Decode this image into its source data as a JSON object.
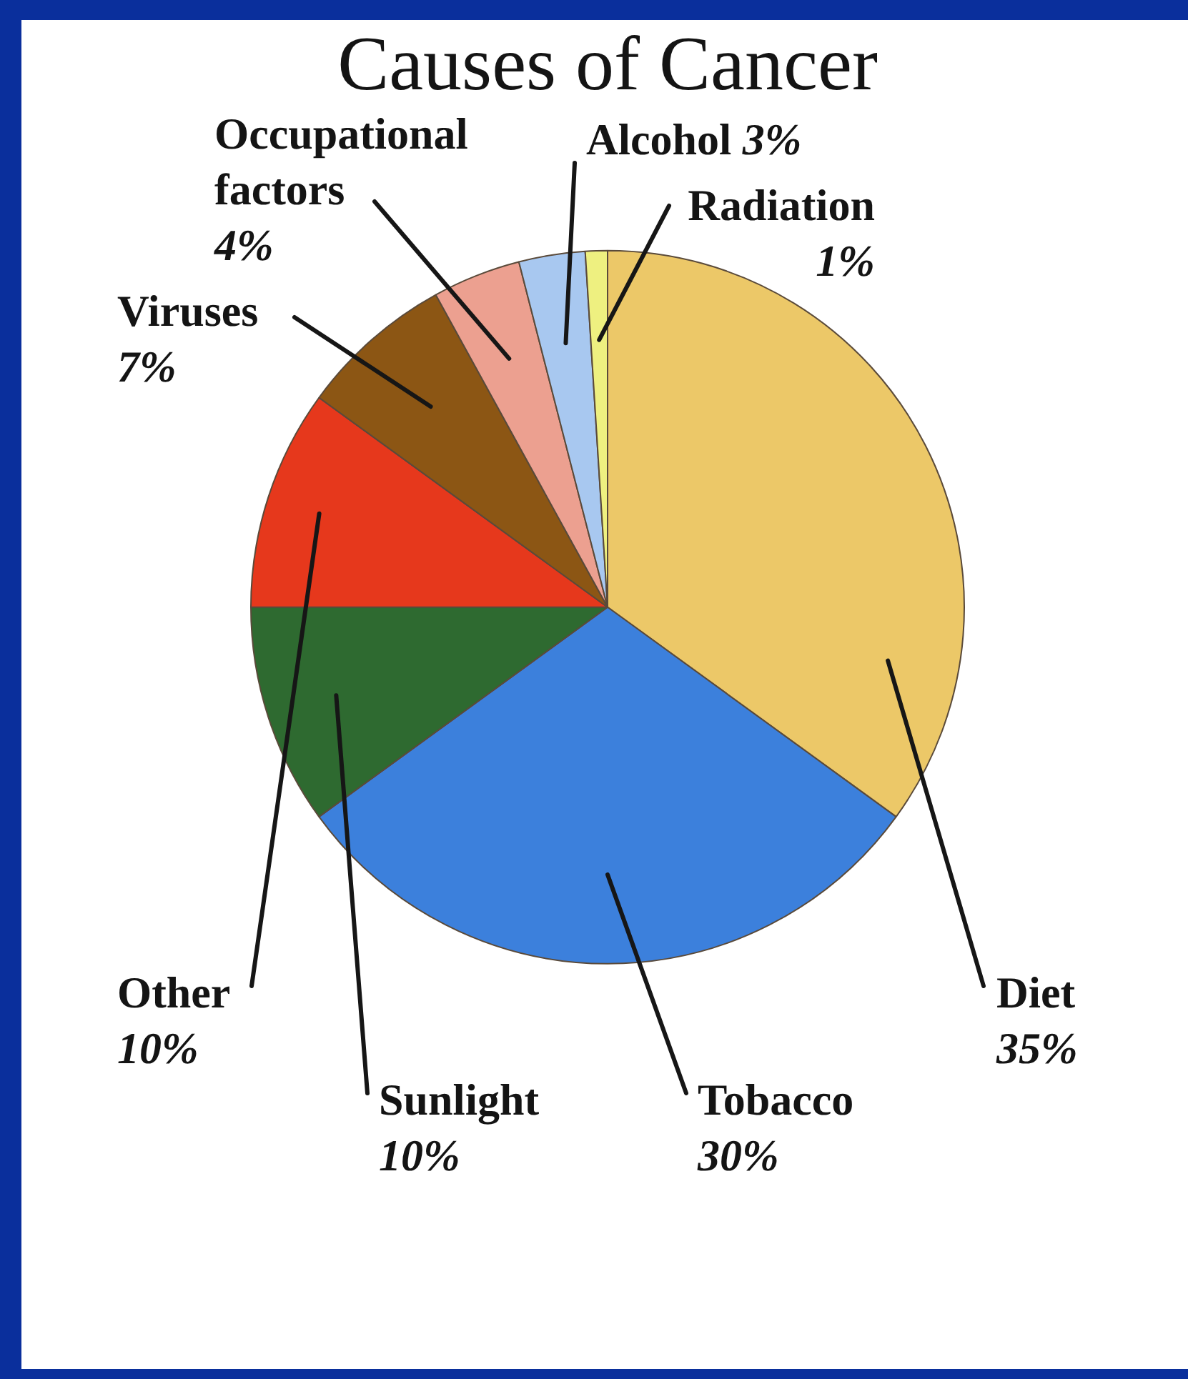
{
  "chart_data": {
    "type": "pie",
    "title": "Causes of Cancer",
    "categories": [
      "Diet",
      "Tobacco",
      "Sunlight",
      "Other",
      "Viruses",
      "Occupational factors",
      "Alcohol",
      "Radiation"
    ],
    "values": [
      35,
      30,
      10,
      10,
      7,
      4,
      3,
      1
    ],
    "colors": [
      "#ecc868",
      "#3c80dc",
      "#2e6a30",
      "#e6381c",
      "#8c5614",
      "#eca090",
      "#a8c8f0",
      "#eef080"
    ],
    "value_labels": [
      "35%",
      "30%",
      "10%",
      "10%",
      "7%",
      "4%",
      "3%",
      "1%"
    ]
  }
}
